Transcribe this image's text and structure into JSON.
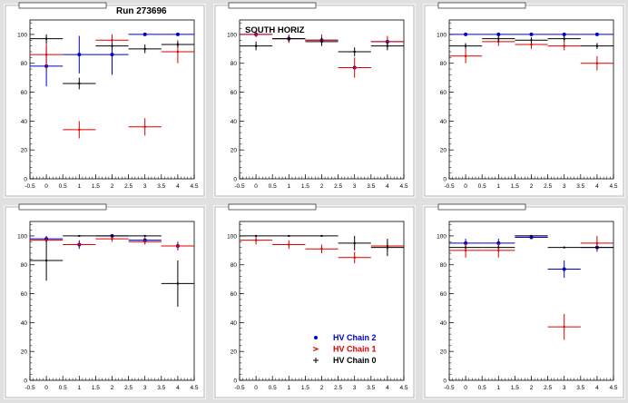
{
  "run_label": "Run 273696",
  "region_label": "SOUTH HORIZ",
  "colors": {
    "chain2": "#0000cc",
    "chain1": "#dd0000",
    "chain0": "#000000",
    "pad": "#ffffff",
    "frame": "#e0e0e0"
  },
  "legend": {
    "entries": [
      {
        "label": "HV Chain 2",
        "marker": "dot",
        "series": 0
      },
      {
        "label": "HV Chain 1",
        "marker": "arrow",
        "series": 1
      },
      {
        "label": "HV Chain 0",
        "marker": "plus",
        "series": 2
      }
    ]
  },
  "chart_data": [
    {
      "type": "scatter",
      "title": "",
      "xlabel": "",
      "ylabel": "",
      "xlim": [
        -0.5,
        4.5
      ],
      "ylim": [
        0,
        110
      ],
      "xticks": [
        "-0.5",
        "0",
        "0.5",
        "1",
        "1.5",
        "2",
        "2.5",
        "3",
        "3.5",
        "4",
        "4.5"
      ],
      "yticks": [
        "0",
        "20",
        "40",
        "60",
        "80",
        "100"
      ],
      "series": [
        {
          "x": [
            0,
            1,
            2,
            3,
            4
          ],
          "y": [
            78,
            86,
            86,
            100,
            100
          ],
          "yerr": [
            14,
            13,
            14,
            0,
            0
          ],
          "color": "#0000cc"
        },
        {
          "x": [
            0,
            1,
            2,
            3,
            4
          ],
          "y": [
            86,
            34,
            96,
            36,
            88
          ],
          "yerr": [
            9,
            6,
            4,
            6,
            8
          ],
          "color": "#dd0000"
        },
        {
          "x": [
            0,
            1,
            2,
            3,
            4
          ],
          "y": [
            97,
            66,
            92,
            90,
            93
          ],
          "yerr": [
            3,
            4,
            2,
            3,
            2
          ],
          "color": "#000000"
        }
      ]
    },
    {
      "type": "scatter",
      "title": "",
      "xlabel": "",
      "ylabel": "",
      "xlim": [
        -0.5,
        4.5
      ],
      "ylim": [
        0,
        110
      ],
      "xticks": [
        "-0.5",
        "0",
        "0.5",
        "1",
        "1.5",
        "2",
        "2.5",
        "3",
        "3.5",
        "4",
        "4.5"
      ],
      "yticks": [
        "0",
        "20",
        "40",
        "60",
        "80",
        "100"
      ],
      "series": [
        {
          "x": [
            0,
            1,
            2,
            3,
            4
          ],
          "y": [
            100,
            97,
            96,
            77,
            95
          ],
          "yerr": [
            0,
            0,
            0,
            0,
            0
          ],
          "color": "#0000cc"
        },
        {
          "x": [
            0,
            1,
            2,
            3,
            4
          ],
          "y": [
            100,
            97,
            96,
            77,
            95
          ],
          "yerr": [
            2,
            3,
            4,
            7,
            4
          ],
          "color": "#dd0000"
        },
        {
          "x": [
            0,
            1,
            2,
            3,
            4
          ],
          "y": [
            92,
            97,
            95,
            88,
            92
          ],
          "yerr": [
            3,
            2,
            3,
            3,
            3
          ],
          "color": "#000000"
        }
      ]
    },
    {
      "type": "scatter",
      "title": "",
      "xlabel": "",
      "ylabel": "",
      "xlim": [
        -0.5,
        4.5
      ],
      "ylim": [
        0,
        110
      ],
      "xticks": [
        "-0.5",
        "0",
        "0.5",
        "1",
        "1.5",
        "2",
        "2.5",
        "3",
        "3.5",
        "4",
        "4.5"
      ],
      "yticks": [
        "0",
        "20",
        "40",
        "60",
        "80",
        "100"
      ],
      "series": [
        {
          "x": [
            0,
            1,
            2,
            3,
            4
          ],
          "y": [
            100,
            100,
            100,
            100,
            100
          ],
          "yerr": [
            0,
            0,
            0,
            0,
            0
          ],
          "color": "#0000cc"
        },
        {
          "x": [
            0,
            1,
            2,
            3,
            4
          ],
          "y": [
            85,
            95,
            93,
            92,
            80
          ],
          "yerr": [
            5,
            3,
            3,
            3,
            5
          ],
          "color": "#dd0000"
        },
        {
          "x": [
            0,
            1,
            2,
            3,
            4
          ],
          "y": [
            92,
            97,
            96,
            97,
            92
          ],
          "yerr": [
            2,
            2,
            2,
            2,
            2
          ],
          "color": "#000000"
        }
      ]
    },
    {
      "type": "scatter",
      "title": "",
      "xlabel": "",
      "ylabel": "",
      "xlim": [
        -0.5,
        4.5
      ],
      "ylim": [
        0,
        110
      ],
      "xticks": [
        "-0.5",
        "0",
        "0.5",
        "1",
        "1.5",
        "2",
        "2.5",
        "3",
        "3.5",
        "4",
        "4.5"
      ],
      "yticks": [
        "0",
        "20",
        "40",
        "60",
        "80",
        "100"
      ],
      "series": [
        {
          "x": [
            0,
            1,
            2,
            3,
            4
          ],
          "y": [
            98,
            94,
            100,
            97,
            93
          ],
          "yerr": [
            2,
            3,
            0,
            2,
            3
          ],
          "color": "#0000cc"
        },
        {
          "x": [
            0,
            1,
            2,
            3,
            4
          ],
          "y": [
            97,
            94,
            98,
            96,
            93
          ],
          "yerr": [
            2,
            2,
            2,
            2,
            2
          ],
          "color": "#dd0000"
        },
        {
          "x": [
            0,
            1,
            2,
            3,
            4
          ],
          "y": [
            83,
            100,
            100,
            100,
            67
          ],
          "yerr": [
            14,
            0,
            0,
            0,
            16
          ],
          "color": "#000000"
        }
      ]
    },
    {
      "type": "scatter",
      "title": "",
      "xlabel": "",
      "ylabel": "",
      "xlim": [
        -0.5,
        4.5
      ],
      "ylim": [
        0,
        110
      ],
      "xticks": [
        "-0.5",
        "0",
        "0.5",
        "1",
        "1.5",
        "2",
        "2.5",
        "3",
        "3.5",
        "4",
        "4.5"
      ],
      "yticks": [
        "0",
        "20",
        "40",
        "60",
        "80",
        "100"
      ],
      "series": [
        {
          "x": [
            0,
            1,
            2,
            3,
            4
          ],
          "y": [
            97,
            94,
            91,
            85,
            93
          ],
          "yerr": [
            3,
            3,
            3,
            4,
            3
          ],
          "color": "#dd0000"
        },
        {
          "x": [
            0,
            1,
            2,
            3,
            4
          ],
          "y": [
            100,
            100,
            100,
            95,
            92
          ],
          "yerr": [
            0,
            0,
            0,
            5,
            6
          ],
          "color": "#000000"
        }
      ]
    },
    {
      "type": "scatter",
      "title": "",
      "xlabel": "",
      "ylabel": "",
      "xlim": [
        -0.5,
        4.5
      ],
      "ylim": [
        0,
        110
      ],
      "xticks": [
        "-0.5",
        "0",
        "0.5",
        "1",
        "1.5",
        "2",
        "2.5",
        "3",
        "3.5",
        "4",
        "4.5"
      ],
      "yticks": [
        "0",
        "20",
        "40",
        "60",
        "80",
        "100"
      ],
      "series": [
        {
          "x": [
            0,
            1,
            2,
            3,
            4
          ],
          "y": [
            95,
            95,
            99,
            77,
            92
          ],
          "yerr": [
            3,
            3,
            1,
            6,
            3
          ],
          "color": "#0000cc"
        },
        {
          "x": [
            0,
            1,
            2,
            3,
            4
          ],
          "y": [
            90,
            90,
            100,
            37,
            95
          ],
          "yerr": [
            5,
            5,
            0,
            9,
            5
          ],
          "color": "#dd0000"
        },
        {
          "x": [
            0,
            1,
            2,
            3,
            4
          ],
          "y": [
            92,
            92,
            100,
            92,
            92
          ],
          "yerr": [
            0,
            0,
            0,
            0,
            0
          ],
          "color": "#000000"
        }
      ]
    }
  ]
}
